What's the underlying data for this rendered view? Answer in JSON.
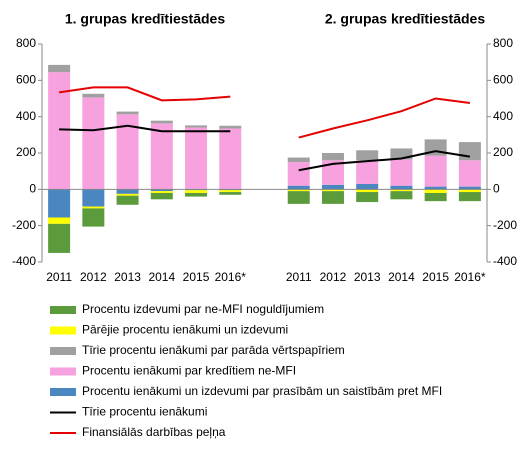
{
  "chart_data": {
    "type": "bar",
    "group_titles": [
      "1. grupas kredītiestādes",
      "2. grupas kredītiestādes"
    ],
    "categories": [
      "2011",
      "2012",
      "2013",
      "2014",
      "2015",
      "2016*",
      null,
      "2011",
      "2012",
      "2013",
      "2014",
      "2015",
      "2016*"
    ],
    "ylim": [
      -400,
      800
    ],
    "yticks": [
      -400,
      -200,
      0,
      200,
      400,
      600,
      800
    ],
    "y2lim": [
      -400,
      800
    ],
    "y2ticks": [
      -400,
      -200,
      0,
      200,
      400,
      600,
      800
    ],
    "series": [
      {
        "name": "Procentu izdevumi par ne-MFI noguldījumiem",
        "type": "bar",
        "color": "#5b9b3c",
        "values": [
          -160,
          -100,
          -50,
          -35,
          -20,
          -15,
          null,
          -70,
          -70,
          -55,
          -45,
          -45,
          -50
        ]
      },
      {
        "name": "Pārējie procentu ienākumi un izdevumi",
        "type": "bar",
        "color": "#ffff00",
        "values": [
          -35,
          -10,
          -10,
          -10,
          -15,
          -10,
          null,
          -10,
          -10,
          -15,
          -10,
          -20,
          -15
        ]
      },
      {
        "name": "Tīrie procentu ienākumi par parāda vērtspapīriem",
        "type": "bar",
        "color": "#a0a0a0",
        "values": [
          40,
          20,
          15,
          15,
          12,
          15,
          null,
          25,
          40,
          55,
          60,
          90,
          100
        ]
      },
      {
        "name": "Procentu ienākumi par kredītiem ne-MFI",
        "type": "bar",
        "color": "#f7a1df",
        "values": [
          645,
          506,
          413,
          363,
          340,
          335,
          null,
          130,
          135,
          130,
          145,
          170,
          145
        ]
      },
      {
        "name": "Procentu ienākumi un izdevumi par prasībām un saistībām pret MFI",
        "type": "bar",
        "color": "#4a86c0",
        "values": [
          -155,
          -95,
          -25,
          -10,
          -5,
          -5,
          null,
          20,
          25,
          30,
          20,
          15,
          15
        ]
      },
      {
        "name": "Tīrie procentu ienākumi",
        "type": "line",
        "color": "#000000",
        "values": [
          330,
          325,
          350,
          320,
          320,
          320,
          null,
          105,
          140,
          155,
          170,
          210,
          180
        ]
      },
      {
        "name": "Finansiālās darbības peļņa",
        "type": "line",
        "color": "#e60000",
        "values": [
          534,
          561,
          561,
          490,
          495,
          510,
          null,
          285,
          335,
          380,
          430,
          500,
          475
        ]
      }
    ]
  }
}
